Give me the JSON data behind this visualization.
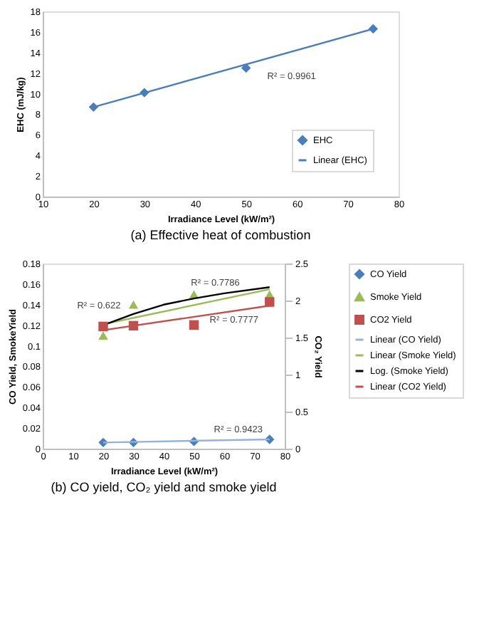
{
  "chart_data": [
    {
      "type": "scatter",
      "title": "(a)  Effective heat of combustion",
      "xlabel": "Irradiance Level (kW/m²)",
      "ylabel": "EHC (mJ/kg)",
      "x": [
        20,
        30,
        50,
        75
      ],
      "xlim": [
        10,
        80
      ],
      "xticks": [
        10,
        20,
        30,
        40,
        50,
        60,
        70,
        80
      ],
      "ylim": [
        0,
        18
      ],
      "yticks": [
        0,
        2,
        4,
        6,
        8,
        10,
        12,
        14,
        16,
        18
      ],
      "grid": false,
      "legend": "bottom right",
      "series": [
        {
          "name": "EHC",
          "color": "#4a7ebb",
          "marker": "diamond",
          "values": [
            8.7,
            10.1,
            12.5,
            16.3
          ]
        },
        {
          "name": "Linear (EHC)",
          "type": "line",
          "color": "#4a7ebb",
          "marker": "none",
          "line_style": "solid",
          "x": [
            20,
            75
          ],
          "values": [
            8.7,
            16.3
          ]
        }
      ],
      "annotations": [
        {
          "text": "R² = 0.9961",
          "x": 50,
          "y": 12.5
        }
      ]
    },
    {
      "type": "scatter",
      "title": "(b) CO yield, CO₂ yield and smoke yield",
      "xlabel": "Irradiance Level (kW/m²)",
      "ylabel": "CO Yield, SmokeYield",
      "y2label": "CO₂ Yield",
      "x": [
        20,
        30,
        50,
        75
      ],
      "xlim": [
        0,
        80
      ],
      "xticks": [
        0,
        10,
        20,
        30,
        40,
        50,
        60,
        70,
        80
      ],
      "ylim": [
        0,
        0.18
      ],
      "yticks": [
        {
          "value": 0,
          "label": "0"
        },
        0.02,
        0.04,
        0.06,
        0.08,
        0.1,
        0.12,
        0.14,
        0.16,
        0.18
      ],
      "y2lim": [
        0,
        2.5
      ],
      "y2ticks": [
        0,
        0.5,
        1,
        1.5,
        2,
        2.5
      ],
      "grid": false,
      "legend": "right",
      "series": [
        {
          "name": "CO Yield",
          "color": "#4a7ebb",
          "marker": "diamond",
          "values": [
            0.006,
            0.006,
            0.007,
            0.009
          ]
        },
        {
          "name": "Smoke Yield",
          "color": "#9bbb59",
          "marker": "triangle",
          "values": [
            0.11,
            0.14,
            0.15,
            0.15
          ]
        },
        {
          "name": "CO2 Yield",
          "color": "#c0504d",
          "marker": "square",
          "axis": "y2",
          "values": [
            1.65,
            1.66,
            1.67,
            1.98
          ]
        },
        {
          "name": "Linear (CO Yield)",
          "type": "line",
          "color": "#95b3d7",
          "marker": "none",
          "line_style": "solid",
          "x": [
            20,
            75
          ],
          "values": [
            0.006,
            0.009
          ]
        },
        {
          "name": "Linear (Smoke Yield)",
          "type": "line",
          "color": "#9bbb59",
          "marker": "none",
          "line_style": "solid",
          "x": [
            20,
            75
          ],
          "values": [
            0.121,
            0.155
          ]
        },
        {
          "name": "Log. (Smoke Yield)",
          "type": "line",
          "color": "#000000",
          "marker": "none",
          "line_style": "solid",
          "x": [
            20,
            30,
            40,
            50,
            60,
            75
          ],
          "values": [
            0.12,
            0.131,
            0.14,
            0.146,
            0.151,
            0.157
          ]
        },
        {
          "name": "Linear (CO2 Yield)",
          "type": "line",
          "color": "#c0504d",
          "marker": "none",
          "line_style": "solid",
          "axis": "y2",
          "x": [
            20,
            75
          ],
          "values": [
            1.6,
            1.93
          ]
        }
      ],
      "annotations": [
        {
          "text": "R² = 0.622",
          "x": 20,
          "y": 0.121
        },
        {
          "text": "R² = 0.7786",
          "x": 50,
          "y": 0.146
        },
        {
          "text": "R² = 0.7777",
          "x": 75,
          "y": 0.139
        },
        {
          "text": "R² = 0.9423",
          "x": 75,
          "y": 0.009
        }
      ]
    }
  ]
}
